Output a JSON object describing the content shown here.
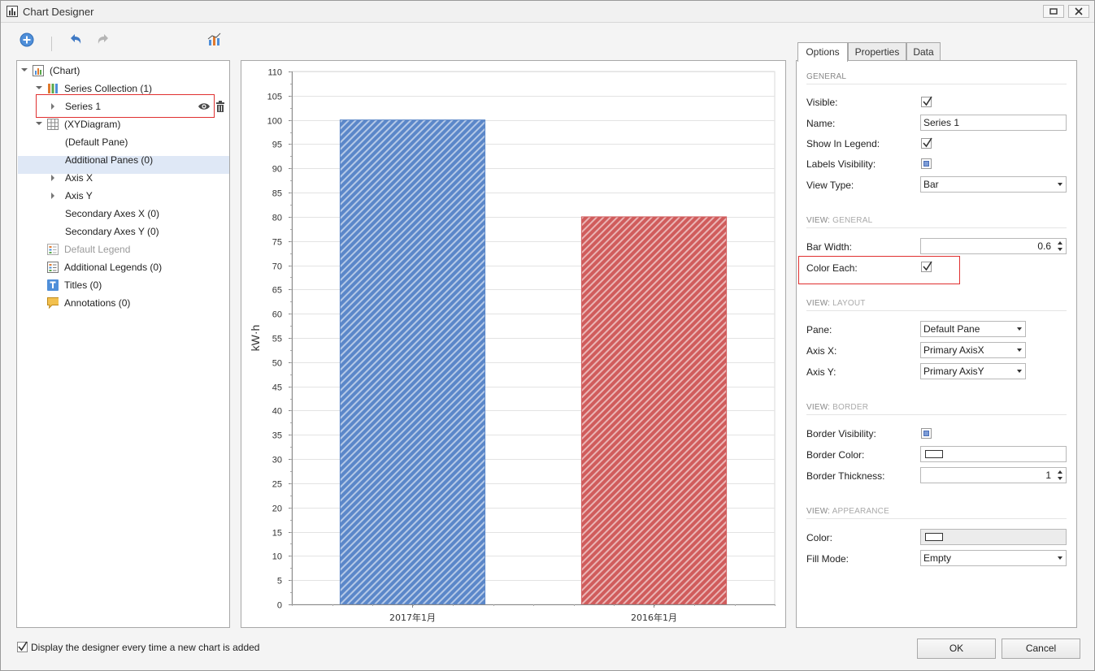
{
  "window": {
    "title": "Chart Designer"
  },
  "tree": {
    "items": [
      {
        "label": "(Chart)"
      },
      {
        "label": "Series Collection (1)"
      },
      {
        "label": "Series 1"
      },
      {
        "label": "(XYDiagram)"
      },
      {
        "label": "(Default Pane)"
      },
      {
        "label": "Additional Panes (0)"
      },
      {
        "label": "Axis X"
      },
      {
        "label": "Axis Y"
      },
      {
        "label": "Secondary Axes X (0)"
      },
      {
        "label": "Secondary Axes Y (0)"
      },
      {
        "label": "Default Legend"
      },
      {
        "label": "Additional Legends (0)"
      },
      {
        "label": "Titles (0)"
      },
      {
        "label": "Annotations (0)"
      }
    ]
  },
  "chart_data": {
    "type": "bar",
    "categories": [
      "2017年1月",
      "2016年1月"
    ],
    "values": [
      100,
      80
    ],
    "colors": [
      "#5b87c9",
      "#d05c5c"
    ],
    "ylabel": "kW·h",
    "xlabel": "",
    "ylim": [
      0,
      110
    ],
    "ytick_step": 5,
    "yticks": [
      "0",
      "5",
      "10",
      "15",
      "20",
      "25",
      "30",
      "35",
      "40",
      "45",
      "50",
      "55",
      "60",
      "65",
      "70",
      "75",
      "80",
      "85",
      "90",
      "95",
      "100",
      "105",
      "110"
    ],
    "grid": true,
    "legend": "none"
  },
  "tabs": [
    {
      "label": "Options"
    },
    {
      "label": "Properties"
    },
    {
      "label": "Data"
    }
  ],
  "options": {
    "general": {
      "title": "GENERAL",
      "visible_label": "Visible:",
      "name_label": "Name:",
      "name_value": "Series 1",
      "show_in_legend_label": "Show In Legend:",
      "labels_visibility_label": "Labels Visibility:",
      "view_type_label": "View Type:",
      "view_type_value": "Bar"
    },
    "view_general": {
      "title_prefix": "VIEW:",
      "title_suffix": "GENERAL",
      "bar_width_label": "Bar Width:",
      "bar_width_value": "0.6",
      "color_each_label": "Color Each:"
    },
    "view_layout": {
      "title_prefix": "VIEW:",
      "title_suffix": "LAYOUT",
      "pane_label": "Pane:",
      "pane_value": "Default Pane",
      "axis_x_label": "Axis X:",
      "axis_x_value": "Primary AxisX",
      "axis_y_label": "Axis Y:",
      "axis_y_value": "Primary AxisY"
    },
    "view_border": {
      "title_prefix": "VIEW:",
      "title_suffix": "BORDER",
      "visibility_label": "Border Visibility:",
      "color_label": "Border Color:",
      "thickness_label": "Border Thickness:",
      "thickness_value": "1"
    },
    "view_appearance": {
      "title_prefix": "VIEW:",
      "title_suffix": "APPEARANCE",
      "color_label": "Color:",
      "fill_mode_label": "Fill Mode:",
      "fill_mode_value": "Empty"
    }
  },
  "footer": {
    "checkbox_label": "Display the designer every time a new chart is added",
    "ok_label": "OK",
    "cancel_label": "Cancel"
  }
}
